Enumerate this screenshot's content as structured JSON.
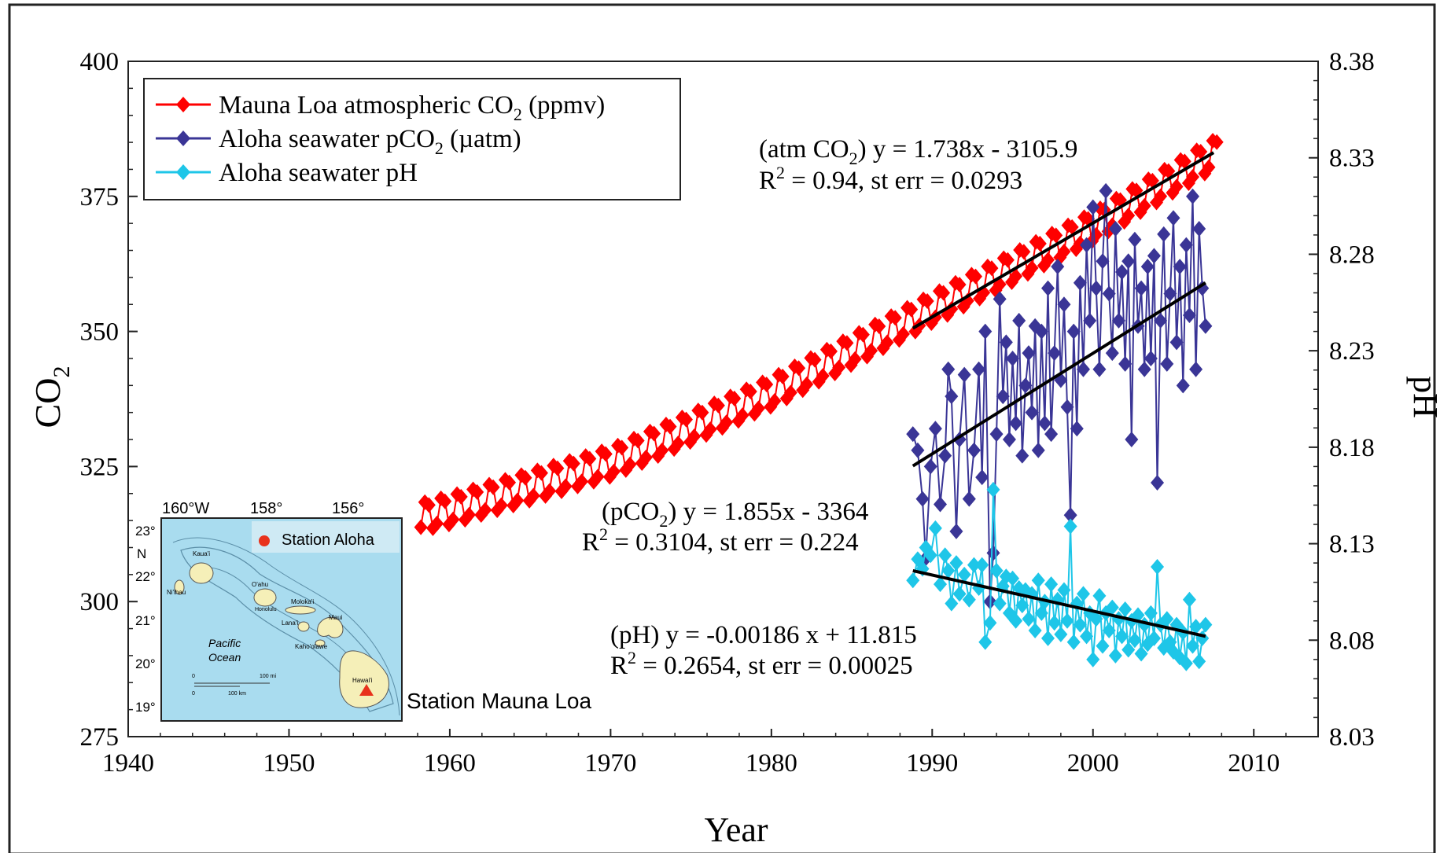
{
  "chart_data": {
    "type": "scatter",
    "xlabel": "Year",
    "ylabel_left": "CO",
    "ylabel_left_sub": "2",
    "ylabel_right": "pH",
    "xlim": [
      1940,
      2014
    ],
    "ylim_left": [
      275,
      400
    ],
    "ylim_right": [
      8.03,
      8.38
    ],
    "x_ticks": [
      1940,
      1950,
      1960,
      1970,
      1980,
      1990,
      2000,
      2010
    ],
    "y_left_ticks": [
      275,
      300,
      325,
      350,
      375,
      400
    ],
    "y_right_ticks": [
      "8.03",
      "8.08",
      "8.13",
      "8.18",
      "8.23",
      "8.28",
      "8.33",
      "8.38"
    ],
    "legend": {
      "placement": "top-left",
      "entries": [
        {
          "name": "Mauna Loa atmospheric CO",
          "sub": "2",
          "suffix": " (ppmv)",
          "color": "#ff0000"
        },
        {
          "name": "Aloha seawater pCO",
          "sub": "2",
          "suffix": " (µatm)",
          "color": "#3a3596"
        },
        {
          "name": "Aloha seawater pH",
          "sub": "",
          "suffix": "",
          "color": "#1ec6e8"
        }
      ]
    },
    "series": [
      {
        "name": "Mauna Loa atmospheric CO2 (ppmv)",
        "color": "#ff0000",
        "axis": "left",
        "generator": "seasonal",
        "x_start": 1958.2,
        "x_end": 2007.9,
        "step": 0.25,
        "trend_points": [
          [
            1958,
            315.5
          ],
          [
            1960,
            316.9
          ],
          [
            1970,
            325.7
          ],
          [
            1980,
            338.7
          ],
          [
            1990,
            354.2
          ],
          [
            2000,
            369.4
          ],
          [
            2008,
            383.7
          ]
        ],
        "seasonal_amplitude": 3.2
      },
      {
        "name": "Aloha seawater pCO2 (µatm)",
        "color": "#3a3596",
        "axis": "left",
        "points": [
          [
            1988.8,
            331
          ],
          [
            1989.1,
            328
          ],
          [
            1989.4,
            319
          ],
          [
            1989.6,
            308
          ],
          [
            1989.9,
            325
          ],
          [
            1990.2,
            332
          ],
          [
            1990.5,
            318
          ],
          [
            1990.8,
            327
          ],
          [
            1991.0,
            343
          ],
          [
            1991.2,
            338
          ],
          [
            1991.5,
            313
          ],
          [
            1991.7,
            330
          ],
          [
            1992.0,
            342
          ],
          [
            1992.3,
            319
          ],
          [
            1992.6,
            328
          ],
          [
            1992.9,
            343
          ],
          [
            1993.1,
            323
          ],
          [
            1993.3,
            350
          ],
          [
            1993.6,
            300
          ],
          [
            1993.8,
            309
          ],
          [
            1994.0,
            331
          ],
          [
            1994.2,
            356
          ],
          [
            1994.4,
            338
          ],
          [
            1994.6,
            348
          ],
          [
            1994.8,
            330
          ],
          [
            1995.0,
            345
          ],
          [
            1995.2,
            333
          ],
          [
            1995.4,
            352
          ],
          [
            1995.6,
            327
          ],
          [
            1995.8,
            340
          ],
          [
            1996.0,
            346
          ],
          [
            1996.2,
            335
          ],
          [
            1996.4,
            351
          ],
          [
            1996.6,
            328
          ],
          [
            1996.8,
            350
          ],
          [
            1997.0,
            333
          ],
          [
            1997.2,
            358
          ],
          [
            1997.4,
            331
          ],
          [
            1997.6,
            346
          ],
          [
            1997.8,
            362
          ],
          [
            1998.0,
            341
          ],
          [
            1998.2,
            355
          ],
          [
            1998.4,
            336
          ],
          [
            1998.6,
            316
          ],
          [
            1998.8,
            350
          ],
          [
            1999.0,
            332
          ],
          [
            1999.2,
            359
          ],
          [
            1999.4,
            343
          ],
          [
            1999.6,
            366
          ],
          [
            1999.8,
            352
          ],
          [
            2000.0,
            373
          ],
          [
            2000.2,
            358
          ],
          [
            2000.4,
            343
          ],
          [
            2000.6,
            363
          ],
          [
            2000.8,
            376
          ],
          [
            2001.0,
            357
          ],
          [
            2001.2,
            346
          ],
          [
            2001.4,
            369
          ],
          [
            2001.6,
            352
          ],
          [
            2001.8,
            361
          ],
          [
            2002.0,
            344
          ],
          [
            2002.2,
            363
          ],
          [
            2002.4,
            330
          ],
          [
            2002.6,
            367
          ],
          [
            2002.8,
            351
          ],
          [
            2003.0,
            358
          ],
          [
            2003.2,
            343
          ],
          [
            2003.4,
            362
          ],
          [
            2003.6,
            345
          ],
          [
            2003.8,
            364
          ],
          [
            2004.0,
            322
          ],
          [
            2004.2,
            352
          ],
          [
            2004.4,
            368
          ],
          [
            2004.6,
            344
          ],
          [
            2004.8,
            357
          ],
          [
            2005.0,
            371
          ],
          [
            2005.2,
            348
          ],
          [
            2005.4,
            362
          ],
          [
            2005.6,
            340
          ],
          [
            2005.8,
            366
          ],
          [
            2006.0,
            353
          ],
          [
            2006.2,
            375
          ],
          [
            2006.4,
            343
          ],
          [
            2006.6,
            369
          ],
          [
            2006.8,
            358
          ],
          [
            2007.0,
            351
          ]
        ]
      },
      {
        "name": "Aloha seawater pH",
        "color": "#1ec6e8",
        "axis": "right",
        "points": [
          [
            1988.8,
            8.111
          ],
          [
            1989.1,
            8.122
          ],
          [
            1989.4,
            8.117
          ],
          [
            1989.6,
            8.128
          ],
          [
            1989.9,
            8.124
          ],
          [
            1990.2,
            8.138
          ],
          [
            1990.5,
            8.109
          ],
          [
            1990.8,
            8.124
          ],
          [
            1991.0,
            8.116
          ],
          [
            1991.2,
            8.099
          ],
          [
            1991.5,
            8.12
          ],
          [
            1991.7,
            8.104
          ],
          [
            1992.0,
            8.114
          ],
          [
            1992.3,
            8.101
          ],
          [
            1992.6,
            8.119
          ],
          [
            1992.9,
            8.107
          ],
          [
            1993.1,
            8.119
          ],
          [
            1993.3,
            8.079
          ],
          [
            1993.6,
            8.089
          ],
          [
            1993.8,
            8.158
          ],
          [
            1994.0,
            8.116
          ],
          [
            1994.2,
            8.099
          ],
          [
            1994.4,
            8.108
          ],
          [
            1994.6,
            8.113
          ],
          [
            1994.8,
            8.094
          ],
          [
            1995.0,
            8.112
          ],
          [
            1995.2,
            8.09
          ],
          [
            1995.4,
            8.107
          ],
          [
            1995.6,
            8.098
          ],
          [
            1995.8,
            8.106
          ],
          [
            1996.0,
            8.091
          ],
          [
            1996.2,
            8.104
          ],
          [
            1996.4,
            8.085
          ],
          [
            1996.6,
            8.111
          ],
          [
            1996.8,
            8.094
          ],
          [
            1997.0,
            8.1
          ],
          [
            1997.2,
            8.081
          ],
          [
            1997.4,
            8.109
          ],
          [
            1997.6,
            8.089
          ],
          [
            1997.8,
            8.101
          ],
          [
            1998.0,
            8.083
          ],
          [
            1998.2,
            8.106
          ],
          [
            1998.4,
            8.09
          ],
          [
            1998.6,
            8.139
          ],
          [
            1998.8,
            8.079
          ],
          [
            1999.0,
            8.099
          ],
          [
            1999.2,
            8.088
          ],
          [
            1999.4,
            8.104
          ],
          [
            1999.6,
            8.082
          ],
          [
            1999.8,
            8.094
          ],
          [
            2000.0,
            8.07
          ],
          [
            2000.2,
            8.091
          ],
          [
            2000.4,
            8.103
          ],
          [
            2000.6,
            8.077
          ],
          [
            2000.8,
            8.094
          ],
          [
            2001.0,
            8.085
          ],
          [
            2001.2,
            8.097
          ],
          [
            2001.4,
            8.072
          ],
          [
            2001.6,
            8.091
          ],
          [
            2001.8,
            8.082
          ],
          [
            2002.0,
            8.096
          ],
          [
            2002.2,
            8.075
          ],
          [
            2002.4,
            8.09
          ],
          [
            2002.6,
            8.08
          ],
          [
            2002.8,
            8.093
          ],
          [
            2003.0,
            8.073
          ],
          [
            2003.2,
            8.088
          ],
          [
            2003.4,
            8.078
          ],
          [
            2003.6,
            8.094
          ],
          [
            2003.8,
            8.081
          ],
          [
            2004.0,
            8.118
          ],
          [
            2004.2,
            8.088
          ],
          [
            2004.4,
            8.076
          ],
          [
            2004.6,
            8.091
          ],
          [
            2004.8,
            8.079
          ],
          [
            2005.0,
            8.074
          ],
          [
            2005.2,
            8.088
          ],
          [
            2005.4,
            8.071
          ],
          [
            2005.6,
            8.084
          ],
          [
            2005.8,
            8.068
          ],
          [
            2006.0,
            8.101
          ],
          [
            2006.2,
            8.077
          ],
          [
            2006.4,
            8.087
          ],
          [
            2006.6,
            8.069
          ],
          [
            2006.8,
            8.081
          ],
          [
            2007.0,
            8.088
          ]
        ]
      }
    ],
    "trendlines": [
      {
        "name": "atm CO2 fit",
        "axis": "left",
        "x": [
          1988.8,
          2007.5
        ],
        "y": [
          350.6,
          383.1
        ]
      },
      {
        "name": "pCO2 fit",
        "axis": "left",
        "x": [
          1988.8,
          2007.0
        ],
        "y": [
          325.1,
          359.0
        ]
      },
      {
        "name": "pH fit",
        "axis": "right",
        "x": [
          1988.8,
          2007.0
        ],
        "y": [
          8.116,
          8.082
        ]
      }
    ],
    "annotations": [
      {
        "id": "atm",
        "line1_pre": "(atm CO",
        "line1_sub": "2",
        "line1_post": ") y = 1.738x - 3105.9",
        "line2_pre": "R",
        "line2_sup": "2",
        "line2_post": " = 0.94, st err = 0.0293"
      },
      {
        "id": "pco2",
        "line1_pre": "(pCO",
        "line1_sub": "2",
        "line1_post": ") y = 1.855x - 3364",
        "line2_pre": "R",
        "line2_sup": "2",
        "line2_post": " = 0.3104, st err = 0.224"
      },
      {
        "id": "ph",
        "line1_pre": "(pH) y = -0.00186 x + 11.815",
        "line1_sub": "",
        "line1_post": "",
        "line2_pre": "R",
        "line2_sup": "2",
        "line2_post": " = 0.2654, st err = 0.00025"
      }
    ],
    "inset_map": {
      "lon_labels": [
        "160°W",
        "158°",
        "156°"
      ],
      "lat_labels": [
        "23°",
        "N",
        "22°",
        "21°",
        "20°",
        "19°"
      ],
      "legend_label": "Station Aloha",
      "islands": [
        "Kaua'i",
        "Ni'ihau",
        "O'ahu",
        "Honolulu",
        "Moloka'i",
        "Lana'i",
        "Maui",
        "Kaho'olawe",
        "Hawai'i"
      ],
      "ocean_label_1": "Pacific",
      "ocean_label_2": "Ocean",
      "scale_mi": "100 mi",
      "scale_km": "100 km",
      "scale_zero": "0",
      "station_label": "Station Mauna Loa",
      "colors": {
        "ocean": "#a9dcef",
        "land": "#f5efb8",
        "station_aloha": "#e8321c",
        "mauna_loa": "#e8321c"
      }
    }
  }
}
